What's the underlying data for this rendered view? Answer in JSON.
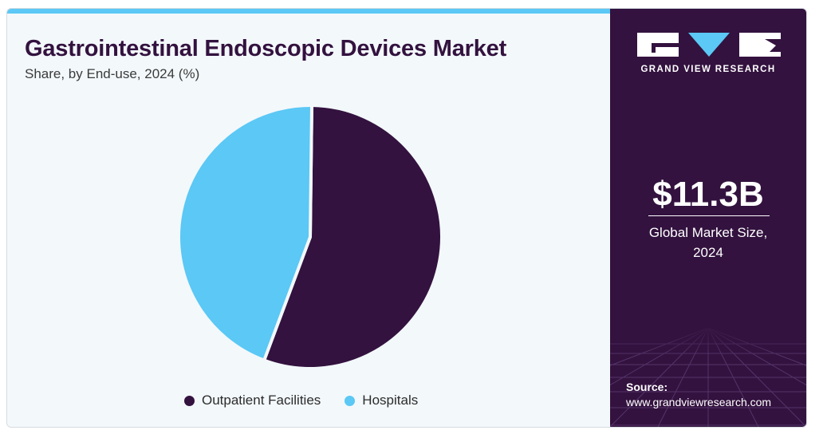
{
  "header": {
    "title": "Gastrointestinal Endoscopic Devices Market",
    "subtitle": "Share, by End-use, 2024 (%)"
  },
  "colors": {
    "outpatient": "#33123f",
    "hospitals": "#5bc8f5",
    "panel": "#33123f",
    "background": "#f3f8fb"
  },
  "chart_data": {
    "type": "pie",
    "title": "Gastrointestinal Endoscopic Devices Market",
    "subtitle": "Share, by End-use, 2024 (%)",
    "categories": [
      "Outpatient Facilities",
      "Hospitals"
    ],
    "values": [
      55.5,
      44.5
    ],
    "legend_position": "bottom"
  },
  "legend": {
    "items": [
      {
        "label": "Outpatient Facilities",
        "color": "#33123f"
      },
      {
        "label": "Hospitals",
        "color": "#5bc8f5"
      }
    ]
  },
  "sidebar": {
    "logo_text": "GRAND VIEW RESEARCH",
    "market_value": "$11.3B",
    "market_label_line1": "Global Market Size,",
    "market_label_line2": "2024",
    "source_label": "Source:",
    "source_url": "www.grandviewresearch.com"
  }
}
